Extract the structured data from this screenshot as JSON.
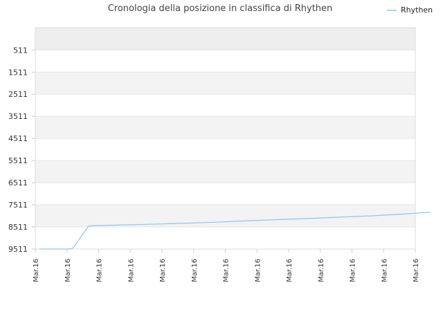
{
  "chart_data": {
    "type": "line",
    "title": "Cronologia della posizione in classifica di Rhythen",
    "xlabel": "",
    "ylabel": "",
    "y_inverted": true,
    "ylim": [
      -500,
      9511
    ],
    "y_ticks": [
      511,
      1511,
      2511,
      3511,
      4511,
      5511,
      6511,
      7511,
      8511,
      9511
    ],
    "x_ticks": [
      "Mar.16",
      "Mar.16",
      "Mar.16",
      "Mar.16",
      "Mar.16",
      "Mar.16",
      "Mar.16",
      "Mar.16",
      "Mar.16",
      "Mar.16",
      "Mar.16",
      "Mar.16",
      "Mar.16"
    ],
    "grid": true,
    "legend": "top-right",
    "colors": {
      "line": "#8ec6ee",
      "band": "#f3f3f3",
      "top_band": "#eeeeee",
      "grid": "#e4e4e4"
    },
    "series": [
      {
        "name": "Rhythen",
        "points": [
          [
            0.0,
            9511
          ],
          [
            0.9,
            9511
          ],
          [
            1.05,
            9480
          ],
          [
            1.55,
            8480
          ],
          [
            1.75,
            8450
          ],
          [
            2.5,
            8430
          ],
          [
            3.5,
            8390
          ],
          [
            4.5,
            8350
          ],
          [
            5.5,
            8300
          ],
          [
            6.5,
            8240
          ],
          [
            7.5,
            8180
          ],
          [
            8.5,
            8130
          ],
          [
            9.5,
            8070
          ],
          [
            10.5,
            8010
          ],
          [
            11.5,
            7930
          ],
          [
            12.2,
            7860
          ],
          [
            12.35,
            7860
          ]
        ]
      }
    ]
  }
}
